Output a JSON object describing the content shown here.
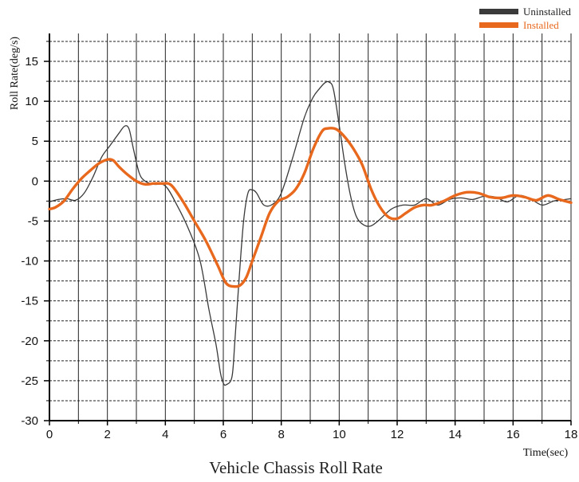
{
  "chart_data": {
    "type": "line",
    "title": "Vehicle Chassis Roll Rate",
    "xlabel": "Time(sec)",
    "ylabel": "Roll Rate(deg/s)",
    "xlim": [
      0,
      18
    ],
    "ylim": [
      -30,
      18
    ],
    "x_ticks": [
      0,
      2,
      4,
      6,
      8,
      10,
      12,
      14,
      16,
      18
    ],
    "y_ticks": [
      15,
      10,
      5,
      0,
      -5,
      -10,
      -15,
      -20,
      -25,
      -30
    ],
    "grid": "dashed horizontal at 2.5 deg/s, solid vertical at 1 sec",
    "legend_position": "top-right",
    "series": [
      {
        "name": "Uninstalled",
        "color": "#3a3a3a",
        "x": [
          0,
          0.3,
          0.6,
          0.9,
          1.2,
          1.5,
          1.8,
          2.1,
          2.4,
          2.6,
          2.75,
          2.9,
          3.1,
          3.3,
          3.6,
          4.0,
          4.4,
          4.8,
          5.2,
          5.5,
          5.75,
          5.9,
          6.0,
          6.1,
          6.3,
          6.4,
          6.55,
          6.7,
          6.85,
          7.0,
          7.15,
          7.4,
          7.7,
          8.0,
          8.4,
          8.8,
          9.1,
          9.3,
          9.5,
          9.65,
          9.8,
          10.0,
          10.2,
          10.4,
          10.6,
          10.85,
          11.1,
          11.4,
          11.8,
          12.2,
          12.6,
          13.0,
          13.4,
          13.8,
          14.2,
          14.6,
          15.0,
          15.4,
          15.8,
          16.2,
          16.6,
          17.0,
          17.4,
          17.8,
          18.0
        ],
        "values": [
          -2.6,
          -2.3,
          -2.2,
          -2.4,
          -1.5,
          0.5,
          3.0,
          4.5,
          6.0,
          6.9,
          6.5,
          4.0,
          1.0,
          0.0,
          -0.4,
          -0.6,
          -3.0,
          -6.0,
          -10.0,
          -16.0,
          -20.5,
          -24.0,
          -25.3,
          -25.5,
          -24.5,
          -20.0,
          -12.0,
          -5.0,
          -1.5,
          -1.1,
          -1.5,
          -3.0,
          -2.9,
          -1.5,
          3.0,
          8.0,
          10.5,
          11.5,
          12.3,
          12.4,
          11.5,
          7.0,
          2.0,
          -2.0,
          -4.5,
          -5.5,
          -5.6,
          -4.8,
          -3.5,
          -3.0,
          -3.0,
          -2.2,
          -3.0,
          -2.3,
          -2.1,
          -2.3,
          -1.9,
          -2.0,
          -2.6,
          -1.8,
          -2.2,
          -3.0,
          -2.5,
          -2.3,
          -2.2
        ]
      },
      {
        "name": "Installed",
        "color": "#e8691e",
        "x": [
          0,
          0.2,
          0.5,
          0.8,
          1.1,
          1.4,
          1.7,
          2.0,
          2.2,
          2.4,
          2.7,
          3.0,
          3.3,
          3.6,
          3.9,
          4.2,
          4.6,
          5.0,
          5.4,
          5.8,
          6.1,
          6.4,
          6.6,
          6.8,
          7.0,
          7.3,
          7.6,
          7.9,
          8.2,
          8.5,
          8.8,
          9.1,
          9.4,
          9.6,
          9.9,
          10.2,
          10.5,
          10.8,
          11.1,
          11.4,
          11.7,
          12.0,
          12.3,
          12.6,
          12.9,
          13.2,
          13.6,
          14.0,
          14.4,
          14.8,
          15.2,
          15.6,
          16.0,
          16.4,
          16.8,
          17.2,
          17.6,
          18.0
        ],
        "values": [
          -3.5,
          -3.3,
          -2.5,
          -1.0,
          0.3,
          1.3,
          2.2,
          2.7,
          2.6,
          1.8,
          0.8,
          0.0,
          -0.4,
          -0.3,
          -0.3,
          -0.5,
          -2.5,
          -5.0,
          -7.5,
          -10.5,
          -12.8,
          -13.2,
          -13.0,
          -12.0,
          -10.0,
          -7.0,
          -4.0,
          -2.5,
          -2.0,
          -1.0,
          1.0,
          4.0,
          6.2,
          6.6,
          6.5,
          5.5,
          4.0,
          2.0,
          -1.0,
          -3.2,
          -4.5,
          -4.7,
          -4.0,
          -3.3,
          -3.0,
          -3.0,
          -2.5,
          -1.8,
          -1.4,
          -1.5,
          -2.0,
          -2.1,
          -1.8,
          -2.0,
          -2.4,
          -1.8,
          -2.3,
          -2.7
        ]
      }
    ]
  }
}
